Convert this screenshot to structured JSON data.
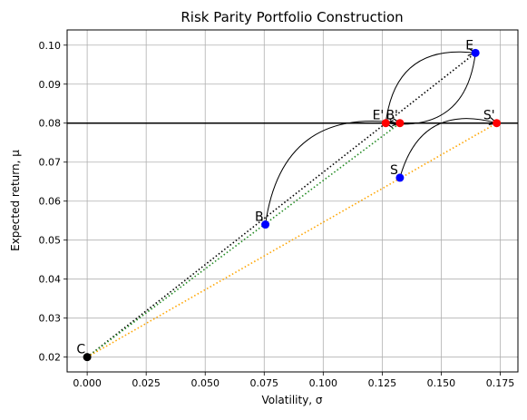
{
  "chart_data": {
    "type": "scatter",
    "title": "Risk Parity Portfolio Construction",
    "xlabel": "Volatility, σ",
    "ylabel": "Expected return, μ",
    "xlim": [
      -0.0085,
      0.1825
    ],
    "ylim": [
      0.0162,
      0.1039
    ],
    "xticks": [
      0.0,
      0.025,
      0.05,
      0.075,
      0.1,
      0.125,
      0.15,
      0.175
    ],
    "xtick_labels": [
      "0.000",
      "0.025",
      "0.050",
      "0.075",
      "0.100",
      "0.125",
      "0.150",
      "0.175"
    ],
    "yticks": [
      0.02,
      0.03,
      0.04,
      0.05,
      0.06,
      0.07,
      0.08,
      0.09,
      0.1
    ],
    "ytick_labels": [
      "0.02",
      "0.03",
      "0.04",
      "0.05",
      "0.06",
      "0.07",
      "0.08",
      "0.09",
      "0.10"
    ],
    "grid": true,
    "hline": {
      "y": 0.08,
      "color": "#000000"
    },
    "points": [
      {
        "label": "C",
        "x": 0.0,
        "y": 0.02,
        "color": "#000000"
      },
      {
        "label": "B",
        "x": 0.0755,
        "y": 0.054,
        "color": "#0000ff"
      },
      {
        "label": "S",
        "x": 0.1325,
        "y": 0.066,
        "color": "#0000ff"
      },
      {
        "label": "E",
        "x": 0.1645,
        "y": 0.098,
        "color": "#0000ff"
      },
      {
        "label": "E'",
        "x": 0.1265,
        "y": 0.08,
        "color": "#ff0000"
      },
      {
        "label": "B'",
        "x": 0.1325,
        "y": 0.08,
        "color": "#ff0000"
      },
      {
        "label": "S'",
        "x": 0.1735,
        "y": 0.08,
        "color": "#ff0000"
      }
    ],
    "dotted_lines": [
      {
        "from": [
          0.0,
          0.02
        ],
        "to": [
          0.1645,
          0.098
        ],
        "color": "#000000"
      },
      {
        "from": [
          0.0,
          0.02
        ],
        "to": [
          0.1325,
          0.08
        ],
        "color": "#228b22"
      },
      {
        "from": [
          0.0,
          0.02
        ],
        "to": [
          0.1735,
          0.08
        ],
        "color": "#ffa500"
      }
    ],
    "arrows": [
      {
        "from": [
          0.1645,
          0.098
        ],
        "to": [
          0.1265,
          0.08
        ],
        "color": "#000000"
      },
      {
        "from": [
          0.1265,
          0.08
        ],
        "to": [
          0.1645,
          0.098
        ],
        "color": "#000000"
      },
      {
        "from": [
          0.0755,
          0.054
        ],
        "to": [
          0.1325,
          0.08
        ],
        "color": "#000000"
      },
      {
        "from": [
          0.1325,
          0.066
        ],
        "to": [
          0.1735,
          0.08
        ],
        "color": "#000000"
      }
    ]
  }
}
